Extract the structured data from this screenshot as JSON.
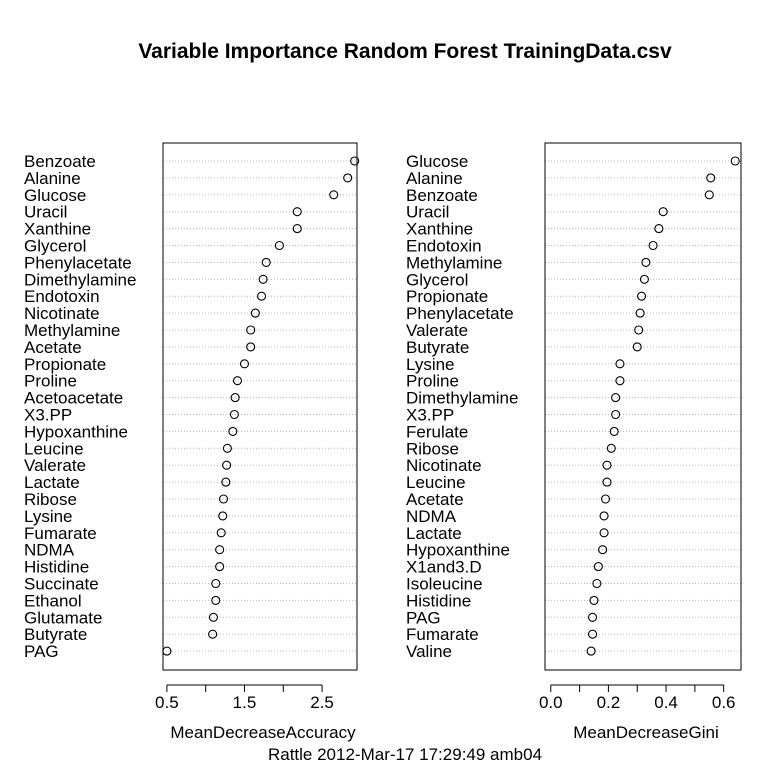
{
  "title": "Variable Importance Random Forest TrainingData.csv",
  "caption": "Rattle 2012-Mar-17 17:29:49 amb04",
  "chart_data": [
    {
      "type": "scatter",
      "xlabel": "MeanDecreaseAccuracy",
      "xlim": [
        0.45,
        2.95
      ],
      "ticks": [
        "0.5",
        "1.5",
        "2.5"
      ],
      "tick_values": [
        0.5,
        1.0,
        1.5,
        2.0,
        2.5
      ],
      "grid": "dotted horizontal",
      "categories": [
        "Benzoate",
        "Alanine",
        "Glucose",
        "Uracil",
        "Xanthine",
        "Glycerol",
        "Phenylacetate",
        "Dimethylamine",
        "Endotoxin",
        "Nicotinate",
        "Methylamine",
        "Acetate",
        "Propionate",
        "Proline",
        "Acetoacetate",
        "X3.PP",
        "Hypoxanthine",
        "Leucine",
        "Valerate",
        "Lactate",
        "Ribose",
        "Lysine",
        "Fumarate",
        "NDMA",
        "Histidine",
        "Succinate",
        "Ethanol",
        "Glutamate",
        "Butyrate",
        "PAG"
      ],
      "values": [
        2.92,
        2.83,
        2.65,
        2.18,
        2.18,
        1.95,
        1.78,
        1.74,
        1.72,
        1.64,
        1.58,
        1.58,
        1.5,
        1.41,
        1.38,
        1.37,
        1.35,
        1.28,
        1.27,
        1.26,
        1.23,
        1.22,
        1.2,
        1.18,
        1.18,
        1.13,
        1.13,
        1.1,
        1.09,
        0.5
      ]
    },
    {
      "type": "scatter",
      "xlabel": "MeanDecreaseGini",
      "xlim": [
        -0.02,
        0.66
      ],
      "ticks": [
        "0.0",
        "0.2",
        "0.4",
        "0.6"
      ],
      "tick_values": [
        0.0,
        0.1,
        0.2,
        0.3,
        0.4,
        0.5,
        0.6
      ],
      "grid": "dotted horizontal",
      "categories": [
        "Glucose",
        "Alanine",
        "Benzoate",
        "Uracil",
        "Xanthine",
        "Endotoxin",
        "Methylamine",
        "Glycerol",
        "Propionate",
        "Phenylacetate",
        "Valerate",
        "Butyrate",
        "Lysine",
        "Proline",
        "Dimethylamine",
        "X3.PP",
        "Ferulate",
        "Ribose",
        "Nicotinate",
        "Leucine",
        "Acetate",
        "NDMA",
        "Lactate",
        "Hypoxanthine",
        "X1and3.D",
        "Isoleucine",
        "Histidine",
        "PAG",
        "Fumarate",
        "Valine"
      ],
      "values": [
        0.64,
        0.555,
        0.55,
        0.39,
        0.375,
        0.355,
        0.33,
        0.325,
        0.315,
        0.31,
        0.305,
        0.3,
        0.24,
        0.24,
        0.225,
        0.225,
        0.22,
        0.21,
        0.195,
        0.195,
        0.19,
        0.185,
        0.185,
        0.18,
        0.165,
        0.16,
        0.15,
        0.145,
        0.145,
        0.14
      ]
    }
  ]
}
